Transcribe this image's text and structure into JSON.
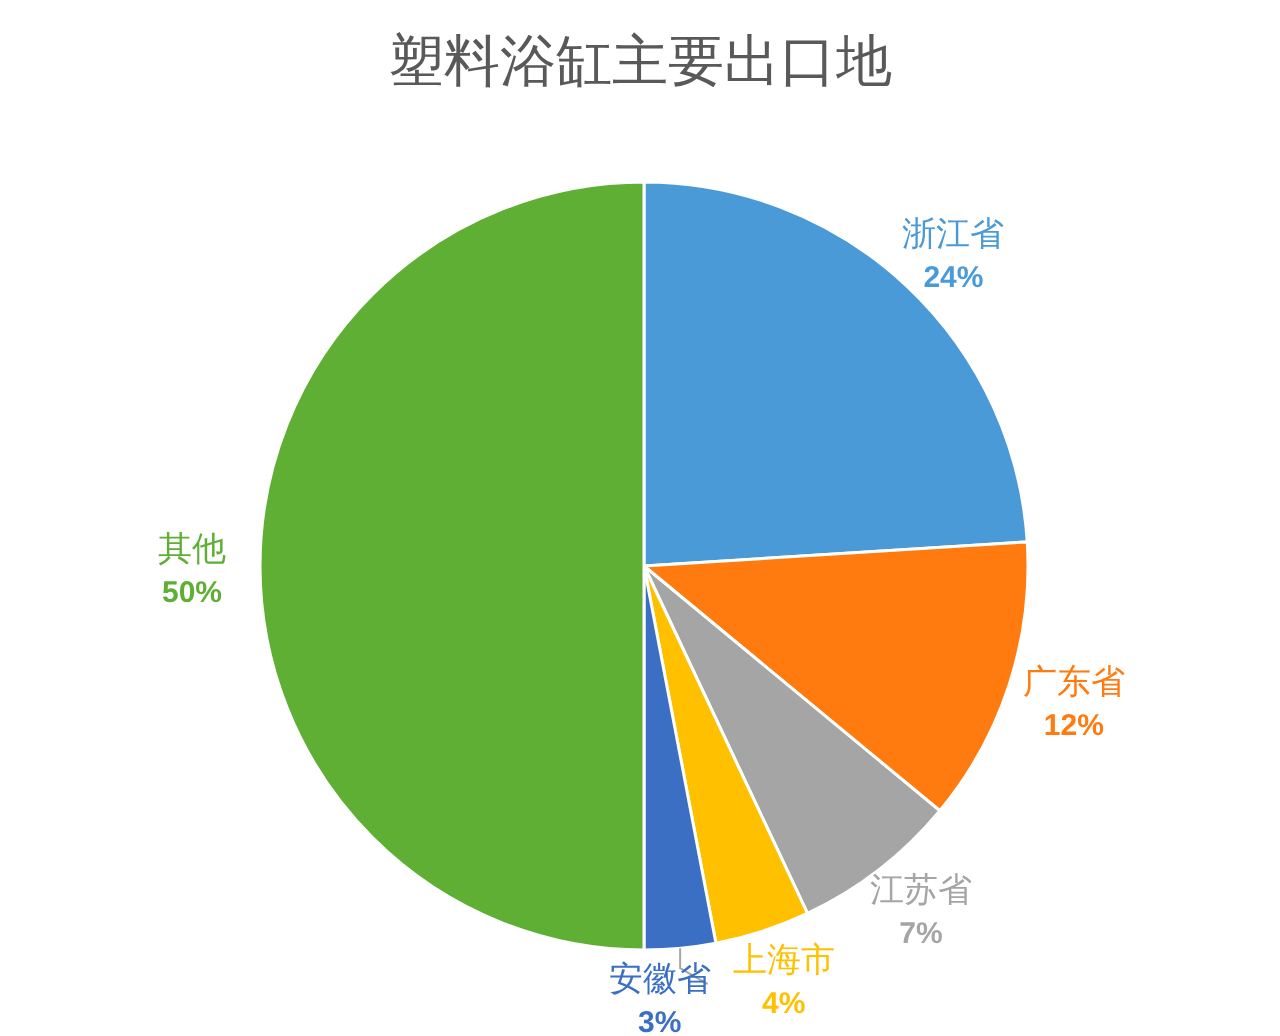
{
  "chart_data": {
    "type": "pie",
    "title": "塑料浴缸主要出口地",
    "categories": [
      "浙江省",
      "广东省",
      "江苏省",
      "上海市",
      "安徽省",
      "其他"
    ],
    "values": [
      24,
      12,
      7,
      4,
      3,
      50
    ],
    "colors": [
      "#4a9ad8",
      "#ff7b10",
      "#a5a5a5",
      "#ffc000",
      "#3a6fc4",
      "#5faf35"
    ],
    "value_labels": [
      "24%",
      "12%",
      "7%",
      "4%",
      "3%",
      "50%"
    ],
    "legend": false
  }
}
